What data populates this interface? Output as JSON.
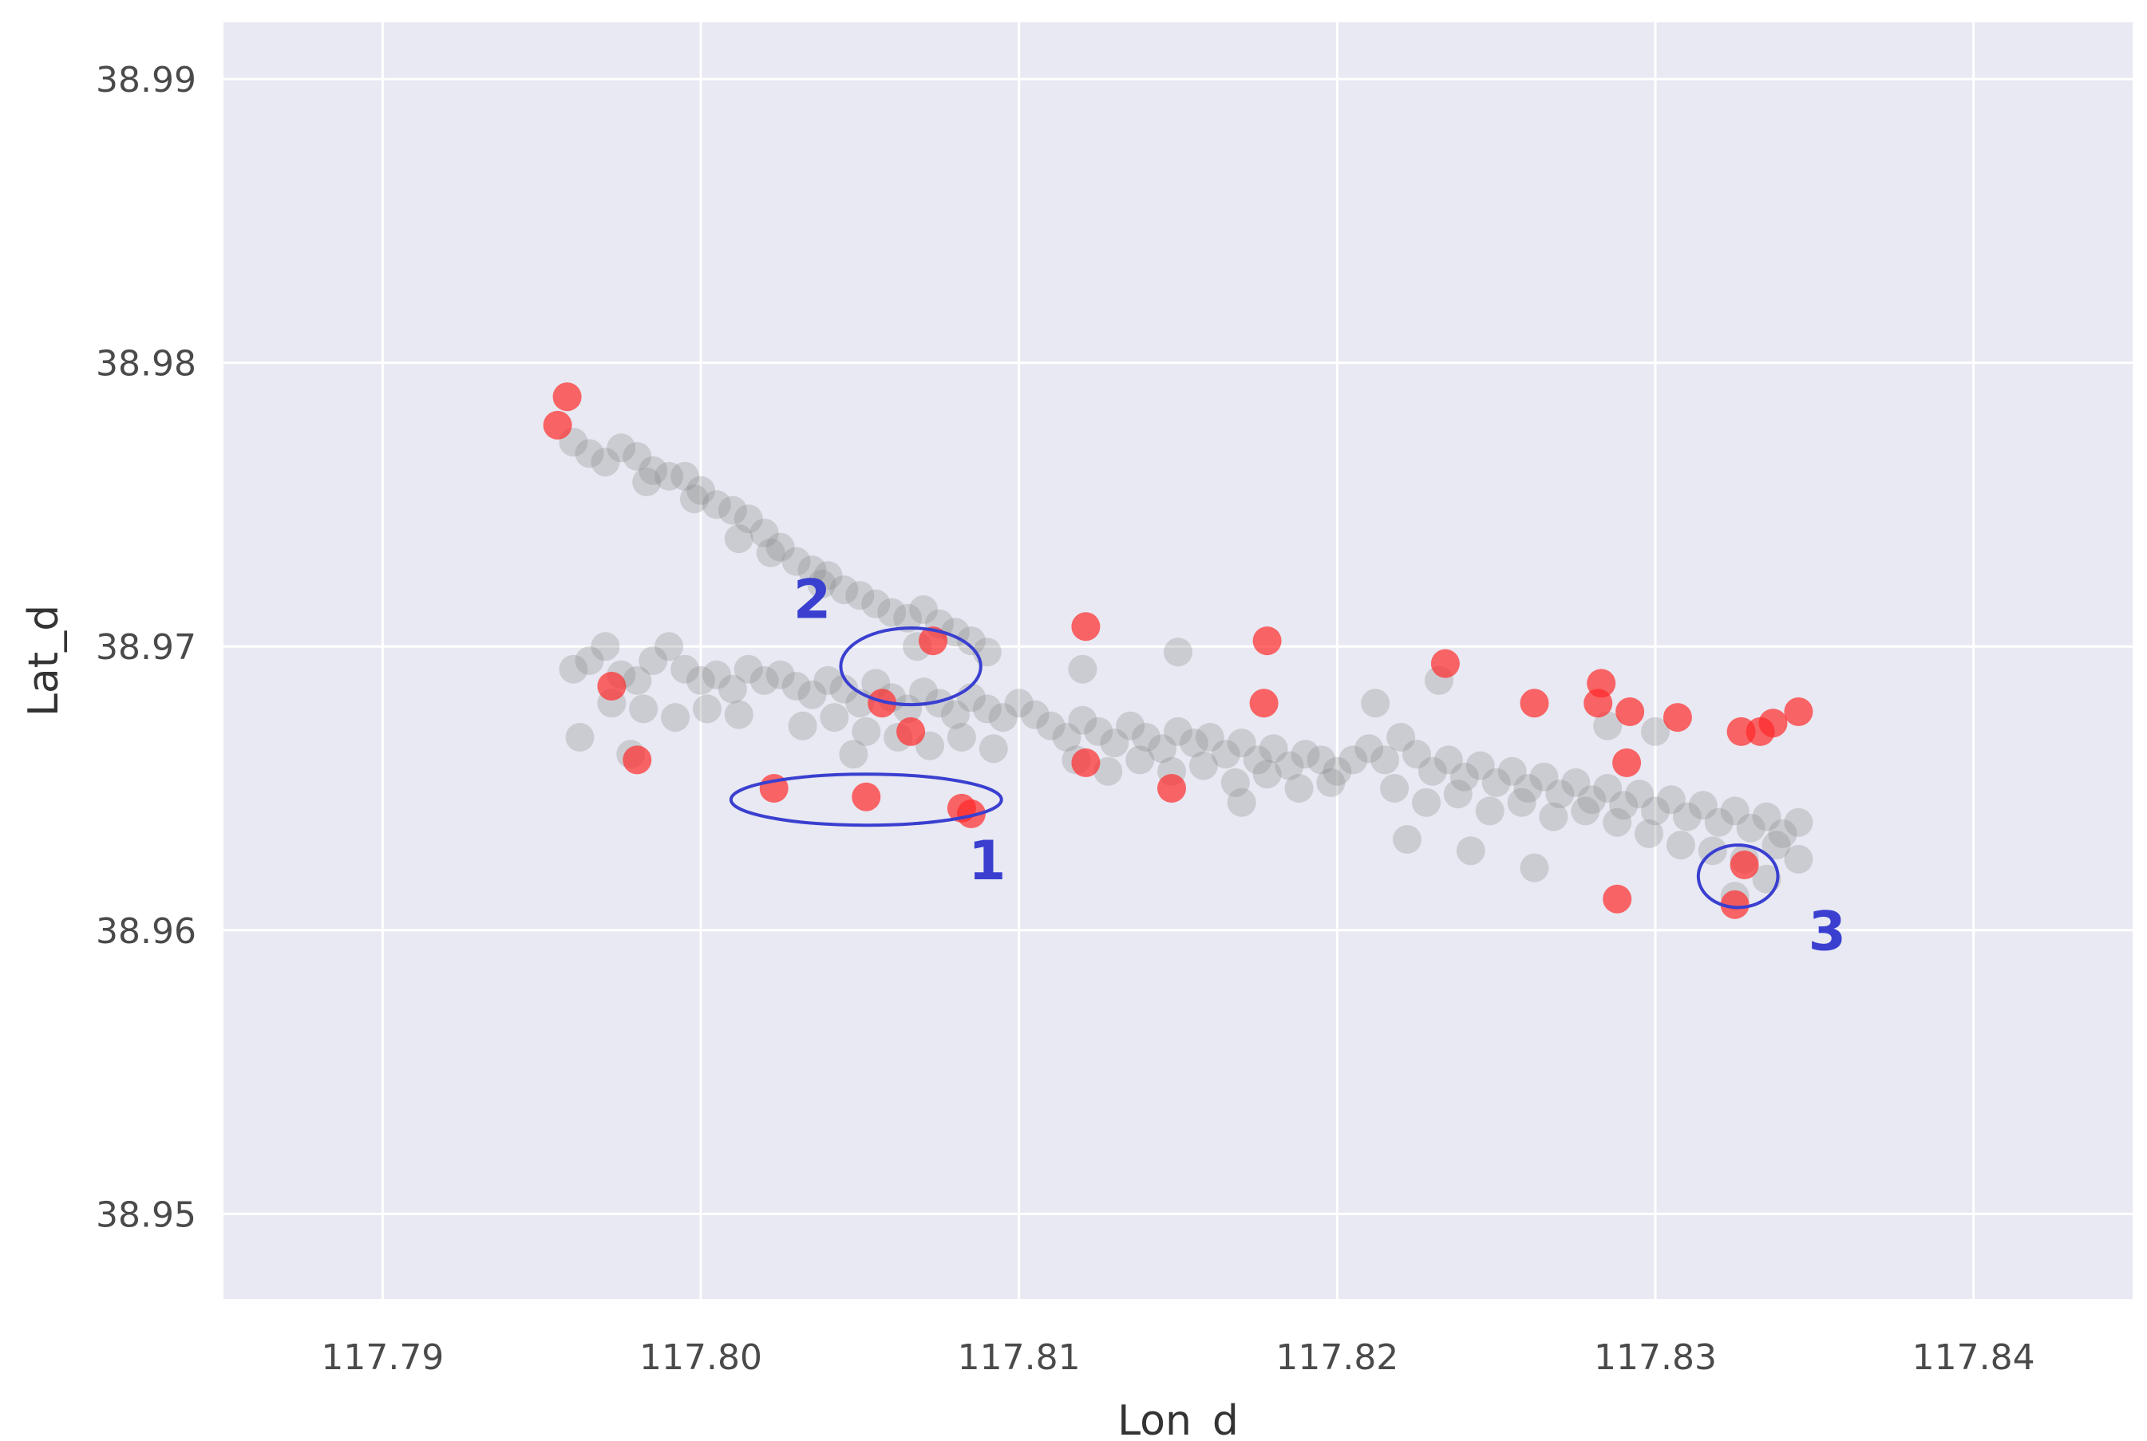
{
  "chart_data": {
    "type": "scatter",
    "title": "",
    "xlabel": "Lon_d",
    "ylabel": "Lat_d",
    "xlim": [
      117.785,
      117.845
    ],
    "ylim": [
      38.947,
      38.992
    ],
    "xticks": [
      117.79,
      117.8,
      117.81,
      117.82,
      117.83,
      117.84
    ],
    "xtick_labels": [
      "117.79",
      "117.80",
      "117.81",
      "117.82",
      "117.83",
      "117.84"
    ],
    "yticks": [
      38.95,
      38.96,
      38.97,
      38.98,
      38.99
    ],
    "ytick_labels": [
      "38.95",
      "38.96",
      "38.97",
      "38.98",
      "38.99"
    ],
    "grid": true,
    "background": "#e8e9f2",
    "series": [
      {
        "color": "#808080",
        "alpha": 0.28,
        "points": [
          [
            117.796,
            38.9772
          ],
          [
            117.7965,
            38.9768
          ],
          [
            117.797,
            38.9765
          ],
          [
            117.7975,
            38.977
          ],
          [
            117.798,
            38.9767
          ],
          [
            117.7985,
            38.9762
          ],
          [
            117.799,
            38.976
          ],
          [
            117.7983,
            38.9758
          ],
          [
            117.7995,
            38.976
          ],
          [
            117.8,
            38.9755
          ],
          [
            117.8005,
            38.975
          ],
          [
            117.7998,
            38.9752
          ],
          [
            117.801,
            38.9748
          ],
          [
            117.8015,
            38.9745
          ],
          [
            117.802,
            38.974
          ],
          [
            117.8012,
            38.9738
          ],
          [
            117.8025,
            38.9735
          ],
          [
            117.803,
            38.973
          ],
          [
            117.8022,
            38.9733
          ],
          [
            117.8035,
            38.9727
          ],
          [
            117.804,
            38.9725
          ],
          [
            117.8045,
            38.972
          ],
          [
            117.8038,
            38.9722
          ],
          [
            117.805,
            38.9718
          ],
          [
            117.8055,
            38.9715
          ],
          [
            117.806,
            38.9712
          ],
          [
            117.8065,
            38.971
          ],
          [
            117.807,
            38.9713
          ],
          [
            117.8075,
            38.9708
          ],
          [
            117.808,
            38.9705
          ],
          [
            117.8068,
            38.97
          ],
          [
            117.8085,
            38.9702
          ],
          [
            117.809,
            38.9698
          ],
          [
            117.796,
            38.9692
          ],
          [
            117.7965,
            38.9695
          ],
          [
            117.797,
            38.97
          ],
          [
            117.7975,
            38.969
          ],
          [
            117.798,
            38.9688
          ],
          [
            117.7985,
            38.9695
          ],
          [
            117.799,
            38.97
          ],
          [
            117.7995,
            38.9692
          ],
          [
            117.8,
            38.9688
          ],
          [
            117.8005,
            38.969
          ],
          [
            117.801,
            38.9685
          ],
          [
            117.8015,
            38.9692
          ],
          [
            117.802,
            38.9688
          ],
          [
            117.8025,
            38.969
          ],
          [
            117.803,
            38.9686
          ],
          [
            117.8035,
            38.9683
          ],
          [
            117.804,
            38.9688
          ],
          [
            117.8045,
            38.9685
          ],
          [
            117.805,
            38.968
          ],
          [
            117.8055,
            38.9687
          ],
          [
            117.806,
            38.9682
          ],
          [
            117.8065,
            38.9678
          ],
          [
            117.807,
            38.9684
          ],
          [
            117.8075,
            38.968
          ],
          [
            117.808,
            38.9676
          ],
          [
            117.8085,
            38.9682
          ],
          [
            117.809,
            38.9678
          ],
          [
            117.8095,
            38.9675
          ],
          [
            117.81,
            38.968
          ],
          [
            117.8105,
            38.9676
          ],
          [
            117.7972,
            38.968
          ],
          [
            117.7982,
            38.9678
          ],
          [
            117.7992,
            38.9675
          ],
          [
            117.8002,
            38.9678
          ],
          [
            117.8012,
            38.9676
          ],
          [
            117.8032,
            38.9672
          ],
          [
            117.8042,
            38.9675
          ],
          [
            117.8052,
            38.967
          ],
          [
            117.8062,
            38.9668
          ],
          [
            117.8072,
            38.9665
          ],
          [
            117.8082,
            38.9668
          ],
          [
            117.8092,
            38.9664
          ],
          [
            117.7962,
            38.9668
          ],
          [
            117.7978,
            38.9662
          ],
          [
            117.8048,
            38.9662
          ],
          [
            117.811,
            38.9672
          ],
          [
            117.8115,
            38.9668
          ],
          [
            117.812,
            38.9674
          ],
          [
            117.8125,
            38.967
          ],
          [
            117.813,
            38.9666
          ],
          [
            117.8135,
            38.9672
          ],
          [
            117.814,
            38.9668
          ],
          [
            117.8145,
            38.9664
          ],
          [
            117.815,
            38.967
          ],
          [
            117.8155,
            38.9666
          ],
          [
            117.816,
            38.9668
          ],
          [
            117.8165,
            38.9662
          ],
          [
            117.817,
            38.9666
          ],
          [
            117.8175,
            38.966
          ],
          [
            117.818,
            38.9664
          ],
          [
            117.8185,
            38.9658
          ],
          [
            117.819,
            38.9662
          ],
          [
            117.8195,
            38.966
          ],
          [
            117.82,
            38.9656
          ],
          [
            117.8205,
            38.966
          ],
          [
            117.8118,
            38.966
          ],
          [
            117.8128,
            38.9656
          ],
          [
            117.8138,
            38.966
          ],
          [
            117.8148,
            38.9656
          ],
          [
            117.8158,
            38.9658
          ],
          [
            117.8168,
            38.9652
          ],
          [
            117.8178,
            38.9655
          ],
          [
            117.8188,
            38.965
          ],
          [
            117.8198,
            38.9652
          ],
          [
            117.815,
            38.9698
          ],
          [
            117.812,
            38.9692
          ],
          [
            117.817,
            38.9645
          ],
          [
            117.821,
            38.9664
          ],
          [
            117.8215,
            38.966
          ],
          [
            117.822,
            38.9668
          ],
          [
            117.8225,
            38.9662
          ],
          [
            117.823,
            38.9656
          ],
          [
            117.8235,
            38.966
          ],
          [
            117.824,
            38.9654
          ],
          [
            117.8245,
            38.9658
          ],
          [
            117.825,
            38.9652
          ],
          [
            117.8255,
            38.9656
          ],
          [
            117.826,
            38.965
          ],
          [
            117.8265,
            38.9654
          ],
          [
            117.827,
            38.9648
          ],
          [
            117.8275,
            38.9652
          ],
          [
            117.828,
            38.9646
          ],
          [
            117.8285,
            38.965
          ],
          [
            117.829,
            38.9644
          ],
          [
            117.8295,
            38.9648
          ],
          [
            117.83,
            38.9642
          ],
          [
            117.8305,
            38.9646
          ],
          [
            117.831,
            38.964
          ],
          [
            117.8315,
            38.9644
          ],
          [
            117.832,
            38.9638
          ],
          [
            117.8325,
            38.9642
          ],
          [
            117.833,
            38.9636
          ],
          [
            117.8335,
            38.964
          ],
          [
            117.834,
            38.9634
          ],
          [
            117.8345,
            38.9638
          ],
          [
            117.8218,
            38.965
          ],
          [
            117.8228,
            38.9645
          ],
          [
            117.8238,
            38.9648
          ],
          [
            117.8248,
            38.9642
          ],
          [
            117.8258,
            38.9645
          ],
          [
            117.8268,
            38.964
          ],
          [
            117.8278,
            38.9642
          ],
          [
            117.8288,
            38.9638
          ],
          [
            117.8298,
            38.9634
          ],
          [
            117.8308,
            38.963
          ],
          [
            117.8318,
            38.9628
          ],
          [
            117.8328,
            38.9625
          ],
          [
            117.8338,
            38.963
          ],
          [
            117.8345,
            38.9625
          ],
          [
            117.8335,
            38.9618
          ],
          [
            117.8222,
            38.9632
          ],
          [
            117.8242,
            38.9628
          ],
          [
            117.8262,
            38.9622
          ],
          [
            117.8325,
            38.9612
          ],
          [
            117.8232,
            38.9688
          ],
          [
            117.8212,
            38.968
          ],
          [
            117.8285,
            38.9672
          ],
          [
            117.83,
            38.967
          ]
        ]
      },
      {
        "color": "#ff2a2a",
        "alpha": 0.7,
        "points": [
          [
            117.7958,
            38.9788
          ],
          [
            117.7955,
            38.9778
          ],
          [
            117.7972,
            38.9686
          ],
          [
            117.798,
            38.966
          ],
          [
            117.8023,
            38.965
          ],
          [
            117.8052,
            38.9647
          ],
          [
            117.8082,
            38.9643
          ],
          [
            117.8085,
            38.9641
          ],
          [
            117.8057,
            38.968
          ],
          [
            117.8073,
            38.9702
          ],
          [
            117.8066,
            38.967
          ],
          [
            117.8121,
            38.9707
          ],
          [
            117.8121,
            38.9659
          ],
          [
            117.8148,
            38.965
          ],
          [
            117.8177,
            38.968
          ],
          [
            117.8178,
            38.9702
          ],
          [
            117.8234,
            38.9694
          ],
          [
            117.8262,
            38.968
          ],
          [
            117.8282,
            38.968
          ],
          [
            117.8283,
            38.9687
          ],
          [
            117.8292,
            38.9677
          ],
          [
            117.8307,
            38.9675
          ],
          [
            117.8291,
            38.9659
          ],
          [
            117.8288,
            38.9611
          ],
          [
            117.8327,
            38.967
          ],
          [
            117.8333,
            38.967
          ],
          [
            117.8337,
            38.9673
          ],
          [
            117.8345,
            38.9677
          ],
          [
            117.8328,
            38.9623
          ],
          [
            117.8325,
            38.9609
          ]
        ]
      }
    ],
    "annotations": [
      {
        "label": "1",
        "center": [
          117.8052,
          38.9646
        ],
        "radius": [
          0.00425,
          0.0009
        ],
        "label_at": [
          117.809,
          38.9618
        ]
      },
      {
        "label": "2",
        "center": [
          117.8066,
          38.9693
        ],
        "radius": [
          0.0022,
          0.00135
        ],
        "label_at": [
          117.8035,
          38.971
        ]
      },
      {
        "label": "3",
        "center": [
          117.8326,
          38.9619
        ],
        "radius": [
          0.00125,
          0.0011
        ],
        "label_at": [
          117.8354,
          38.9593
        ]
      }
    ],
    "annotation_color": "#3a3fd0"
  }
}
